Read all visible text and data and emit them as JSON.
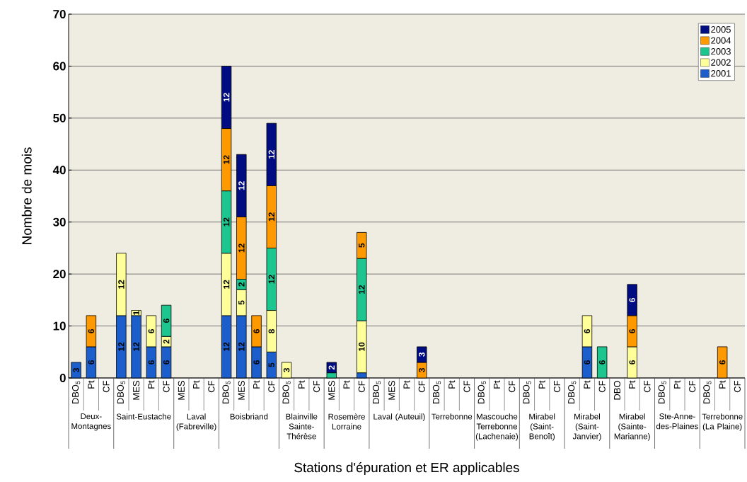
{
  "chart_data": {
    "type": "bar",
    "stacked": true,
    "xlabel": "Stations d'épuration et ER applicables",
    "ylabel": "Nombre de mois",
    "categories": [
      "DBO$_{5}$",
      "Pt",
      "CF",
      "DBO$_{5}$",
      "MES",
      "Pt",
      "CF",
      "MES",
      "Pt",
      "CF",
      "DBO$_{5}$",
      "MES",
      "Pt",
      "CF",
      "DBO$_{5}$",
      "Pt",
      "CF",
      "MES",
      "Pt",
      "CF",
      "DBO$_{5}$",
      "MES",
      "Pt",
      "CF",
      "DBO$_{5}$",
      "Pt",
      "CF",
      "DBO$_{5}$",
      "Pt",
      "CF",
      "DBO$_{5}$",
      "Pt",
      "CF",
      "DBO$_{5}$",
      "Pt",
      "CF",
      "DBO",
      "Pt",
      "CF",
      "DBO$_{5}$",
      "Pt",
      "CF",
      "DBO$_{5}$",
      "Pt",
      "CF"
    ],
    "annotations": [
      "Deux-Montagnes",
      "Saint-Eustache",
      "Laval (Fabreville)",
      "Boisbriand",
      "Blainville Sainte-Thérèse",
      "Rosemère Lorraine",
      "Laval (Auteuil)",
      "Terrebonne",
      "Mascouche Terrebonne (Lachenaie)",
      "Mirabel (Saint-Benoît)",
      "Mirabel (Saint-Janvier)",
      "Mirabel (Sainte-Marianne)",
      "Ste-Anne-des-Plaines",
      "Terrebonne (La Plaine)"
    ],
    "series": [
      {
        "name": "2001",
        "color": "#1c5fcc",
        "values": [
          3,
          6,
          null,
          12,
          12,
          6,
          6,
          null,
          null,
          null,
          12,
          12,
          6,
          5,
          null,
          null,
          null,
          null,
          null,
          1,
          null,
          null,
          null,
          null,
          null,
          null,
          null,
          null,
          null,
          null,
          null,
          null,
          null,
          null,
          6,
          null,
          null,
          null,
          null,
          null,
          null,
          null,
          null,
          null,
          null
        ],
        "value_labels": [
          "3",
          "6",
          null,
          "12",
          "12",
          "6",
          "6",
          null,
          null,
          null,
          "12",
          "12",
          "6",
          "5",
          null,
          null,
          null,
          null,
          null,
          null,
          null,
          null,
          null,
          null,
          null,
          null,
          null,
          null,
          null,
          null,
          null,
          null,
          null,
          null,
          "6",
          null,
          null,
          null,
          null,
          null,
          null,
          null,
          null,
          null,
          null
        ]
      },
      {
        "name": "2002",
        "color": "#ffff99",
        "values": [
          null,
          null,
          null,
          12,
          1,
          6,
          2,
          null,
          null,
          null,
          12,
          5,
          null,
          8,
          3,
          null,
          null,
          null,
          null,
          10,
          null,
          null,
          null,
          null,
          null,
          null,
          null,
          null,
          null,
          null,
          null,
          null,
          null,
          null,
          6,
          null,
          null,
          6,
          null,
          null,
          null,
          null,
          null,
          null,
          null
        ],
        "value_labels": [
          null,
          null,
          null,
          "12",
          "1",
          "6",
          "2",
          null,
          null,
          null,
          "12",
          "5",
          null,
          "8",
          "3",
          null,
          null,
          null,
          null,
          "10",
          null,
          null,
          null,
          null,
          null,
          null,
          null,
          null,
          null,
          null,
          null,
          null,
          null,
          null,
          "6",
          null,
          null,
          "6",
          null,
          null,
          null,
          null,
          null,
          null,
          null
        ]
      },
      {
        "name": "2003",
        "color": "#1dc68f",
        "values": [
          null,
          null,
          null,
          null,
          null,
          null,
          6,
          null,
          null,
          null,
          12,
          2,
          null,
          12,
          null,
          null,
          null,
          1,
          null,
          12,
          null,
          null,
          null,
          null,
          null,
          null,
          null,
          null,
          null,
          null,
          null,
          null,
          null,
          null,
          null,
          6,
          null,
          null,
          null,
          null,
          null,
          null,
          null,
          null,
          null
        ],
        "value_labels": [
          null,
          null,
          null,
          null,
          null,
          null,
          "6",
          null,
          null,
          null,
          "12",
          "2",
          null,
          "12",
          null,
          null,
          null,
          null,
          null,
          "12",
          null,
          null,
          null,
          null,
          null,
          null,
          null,
          null,
          null,
          null,
          null,
          null,
          null,
          null,
          null,
          "6",
          null,
          null,
          null,
          null,
          null,
          null,
          null,
          null,
          null
        ]
      },
      {
        "name": "2004",
        "color": "#ff9900",
        "values": [
          null,
          6,
          null,
          null,
          null,
          null,
          null,
          null,
          null,
          null,
          12,
          12,
          6,
          12,
          null,
          null,
          null,
          null,
          null,
          5,
          null,
          null,
          null,
          3,
          null,
          null,
          null,
          null,
          null,
          null,
          null,
          null,
          null,
          null,
          null,
          null,
          null,
          6,
          null,
          null,
          null,
          null,
          null,
          6,
          null
        ],
        "value_labels": [
          null,
          "6",
          null,
          null,
          null,
          null,
          null,
          null,
          null,
          null,
          "12",
          "12",
          "6",
          "12",
          null,
          null,
          null,
          null,
          null,
          "5",
          null,
          null,
          null,
          "3",
          null,
          null,
          null,
          null,
          null,
          null,
          null,
          null,
          null,
          null,
          null,
          null,
          null,
          "6",
          null,
          null,
          null,
          null,
          null,
          "6",
          null
        ]
      },
      {
        "name": "2005",
        "color": "#000c82",
        "values": [
          null,
          null,
          null,
          null,
          null,
          null,
          null,
          null,
          null,
          null,
          12,
          12,
          null,
          12,
          null,
          null,
          null,
          2,
          null,
          null,
          null,
          null,
          null,
          3,
          null,
          null,
          null,
          null,
          null,
          null,
          null,
          null,
          null,
          null,
          null,
          null,
          null,
          6,
          null,
          null,
          null,
          null,
          null,
          null,
          null
        ],
        "value_labels": [
          null,
          null,
          null,
          null,
          null,
          null,
          null,
          null,
          null,
          null,
          "12",
          "12",
          null,
          "12",
          null,
          null,
          null,
          "2",
          null,
          null,
          null,
          null,
          null,
          "3",
          null,
          null,
          null,
          null,
          null,
          null,
          null,
          null,
          null,
          null,
          null,
          null,
          null,
          "6",
          null,
          null,
          null,
          null,
          null,
          null,
          null
        ]
      }
    ],
    "ylim": [
      0,
      70
    ],
    "yticks": [
      0,
      10,
      20,
      30,
      40,
      50,
      60,
      70
    ],
    "grid": "y",
    "legend": "top right"
  }
}
